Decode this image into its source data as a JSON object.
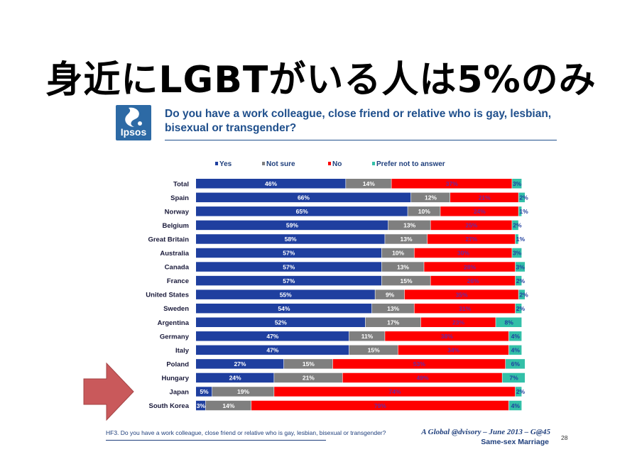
{
  "slide": {
    "title": "身近にLGBTがいる人は5%のみ",
    "logo_text": "Ipsos",
    "question": "Do you have a work colleague, close friend or relative who is gay, lesbian, bisexual or transgender?",
    "footnote": "HF3. Do you have a work colleague, close friend or relative who is gay, lesbian, bisexual or transgender?",
    "footer_line1": "A Global @dvisory – June 2013 – G@45",
    "footer_line2": "Same-sex Marriage",
    "page_number": "28",
    "arrow_color": "#c9595b"
  },
  "chart_data": {
    "type": "bar",
    "orientation": "horizontal",
    "stacked": true,
    "title": "",
    "xlabel": "",
    "ylabel": "",
    "xlim": [
      0,
      100
    ],
    "grid": false,
    "legend_position": "top",
    "categories": [
      "Total",
      "Spain",
      "Norway",
      "Belgium",
      "Great Britain",
      "Australia",
      "Canada",
      "France",
      "United States",
      "Sweden",
      "Argentina",
      "Germany",
      "Italy",
      "Poland",
      "Hungary",
      "Japan",
      "South Korea"
    ],
    "series": [
      {
        "name": "Yes",
        "color": "#1f3f9f",
        "label_color": "#ffffff",
        "values": [
          46,
          66,
          65,
          59,
          58,
          57,
          57,
          57,
          55,
          54,
          52,
          47,
          47,
          27,
          24,
          5,
          3
        ],
        "labels": [
          "46%",
          "66%",
          "65%",
          "59%",
          "58%",
          "57%",
          "57%",
          "57%",
          "55%",
          "54%",
          "52%",
          "47%",
          "47%",
          "27%",
          "24%",
          "5%",
          "3%"
        ]
      },
      {
        "name": "Not sure",
        "color": "#7f7f7f",
        "label_color": "#ffffff",
        "values": [
          14,
          12,
          10,
          13,
          13,
          10,
          13,
          15,
          9,
          13,
          17,
          11,
          15,
          15,
          21,
          19,
          14
        ],
        "labels": [
          "14%",
          "12%",
          "10%",
          "13%",
          "13%",
          "10%",
          "13%",
          "15%",
          "9%",
          "13%",
          "17%",
          "11%",
          "15%",
          "15%",
          "21%",
          "19%",
          "14%"
        ]
      },
      {
        "name": "No",
        "color": "#fe0000",
        "label_color": "#6b2aa0",
        "values": [
          37,
          21,
          24,
          25,
          27,
          30,
          28,
          26,
          35,
          31,
          23,
          38,
          34,
          53,
          49,
          74,
          79
        ],
        "labels": [
          "37%",
          "21%",
          "24%",
          "25%",
          "27%",
          "30%",
          "28%",
          "26%",
          "35%",
          "31%",
          "23%",
          "38%",
          "34%",
          "53%",
          "49%",
          "74%",
          "79%"
        ]
      },
      {
        "name": "Prefer not to answer",
        "color": "#33c0a8",
        "label_color": "#1f3f9f",
        "values": [
          3,
          2,
          1,
          2,
          1,
          3,
          3,
          2,
          2,
          2,
          8,
          4,
          4,
          6,
          7,
          2,
          4
        ],
        "labels": [
          "3%",
          "2%",
          "1%",
          "2%",
          "1%",
          "3%",
          "3%",
          "2%",
          "2%",
          "2%",
          "8%",
          "4%",
          "4%",
          "6%",
          "7%",
          "2%",
          "4%"
        ]
      }
    ]
  }
}
